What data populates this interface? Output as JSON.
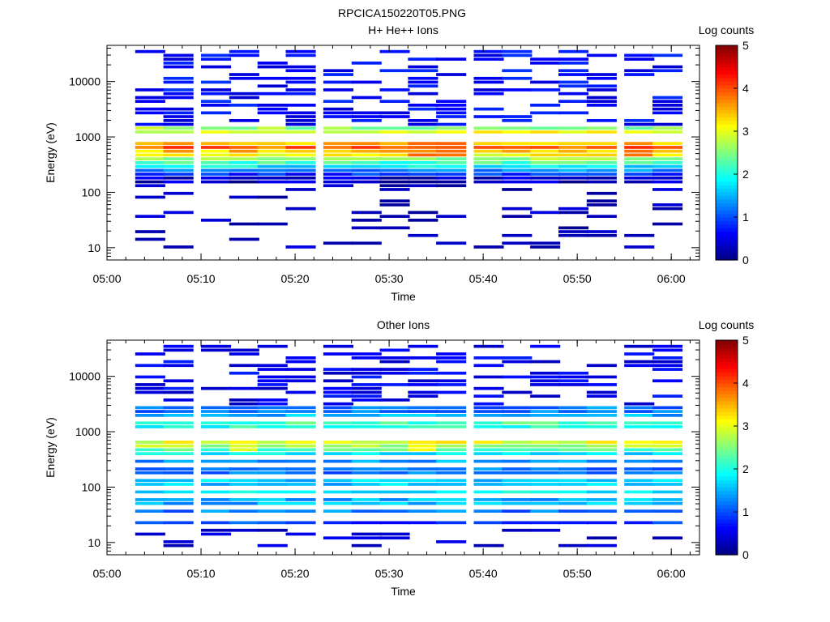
{
  "figure": {
    "title": "RPCICA150220T05.PNG"
  },
  "chart_data": [
    {
      "type": "heatmap",
      "title": "H+ He++ Ions",
      "xlabel": "Time",
      "ylabel": "Energy (eV)",
      "x_ticks": [
        "05:00",
        "05:10",
        "05:20",
        "05:30",
        "05:40",
        "05:50",
        "06:00"
      ],
      "xlim": [
        "05:00",
        "06:03"
      ],
      "y_scale": "log",
      "y_ticks": [
        10,
        100,
        1000,
        10000
      ],
      "ylim": [
        6,
        45000
      ],
      "colorbar": {
        "label": "Log counts",
        "range": [
          0,
          5
        ],
        "ticks": [
          "0",
          "1",
          "2",
          "3",
          "4",
          "5"
        ]
      },
      "time_bins": [
        "05:03",
        "05:06",
        "05:10",
        "05:13",
        "05:16",
        "05:19",
        "05:23",
        "05:26",
        "05:29",
        "05:32",
        "05:35",
        "05:39",
        "05:42",
        "05:45",
        "05:48",
        "05:51",
        "05:55",
        "05:58"
      ],
      "bin_width_min": 3.2,
      "band_values": [
        [
          1400,
          2.6
        ],
        [
          1250,
          3.0
        ],
        [
          750,
          3.5
        ],
        [
          650,
          3.9
        ],
        [
          560,
          3.4
        ],
        [
          480,
          3.1
        ],
        [
          420,
          2.6
        ],
        [
          360,
          2.2
        ],
        [
          310,
          1.8
        ],
        [
          270,
          1.3
        ],
        [
          230,
          0.8
        ],
        [
          190,
          0.4
        ],
        [
          160,
          0.3
        ]
      ],
      "bright_bins": {
        "05:06": 3.1,
        "05:32": 4.0,
        "05:35": 4.0,
        "05:55": 4.1
      },
      "sparse_high": {
        "from_eV": 1600,
        "to_eV": 40000,
        "level": 0.4
      },
      "sparse_low": {
        "from_eV": 10,
        "to_eV": 150,
        "level": 0.1
      }
    },
    {
      "type": "heatmap",
      "title": "Other Ions",
      "xlabel": "Time",
      "ylabel": "Energy (eV)",
      "x_ticks": [
        "05:00",
        "05:10",
        "05:20",
        "05:30",
        "05:40",
        "05:50",
        "06:00"
      ],
      "xlim": [
        "05:00",
        "06:03"
      ],
      "y_scale": "log",
      "y_ticks": [
        10,
        100,
        1000,
        10000
      ],
      "ylim": [
        6,
        45000
      ],
      "colorbar": {
        "label": "Log counts",
        "range": [
          0,
          5
        ],
        "ticks": [
          "0",
          "1",
          "2",
          "3",
          "4",
          "5"
        ]
      },
      "time_bins": [
        "05:03",
        "05:06",
        "05:10",
        "05:13",
        "05:16",
        "05:19",
        "05:23",
        "05:26",
        "05:29",
        "05:32",
        "05:35",
        "05:39",
        "05:42",
        "05:45",
        "05:48",
        "05:51",
        "05:55",
        "05:58"
      ],
      "bin_width_min": 3.2,
      "band_values": [
        [
          2500,
          1.2
        ],
        [
          2000,
          1.5
        ],
        [
          1500,
          2.2
        ],
        [
          1250,
          2.0
        ],
        [
          650,
          3.0
        ],
        [
          560,
          2.7
        ],
        [
          480,
          2.3
        ],
        [
          400,
          1.8
        ],
        [
          300,
          1.4
        ],
        [
          200,
          1.2
        ],
        [
          120,
          1.6
        ],
        [
          80,
          1.8
        ],
        [
          55,
          1.5
        ],
        [
          35,
          1.2
        ],
        [
          22,
          0.9
        ]
      ],
      "bright_bins": {
        "05:13": 3.2,
        "05:32": 3.2,
        "05:52": 3.3
      },
      "sparse_high": {
        "from_eV": 3000,
        "to_eV": 40000,
        "level": 0.3
      },
      "sparse_low": {
        "from_eV": 8,
        "to_eV": 18,
        "level": 0.2
      }
    }
  ]
}
